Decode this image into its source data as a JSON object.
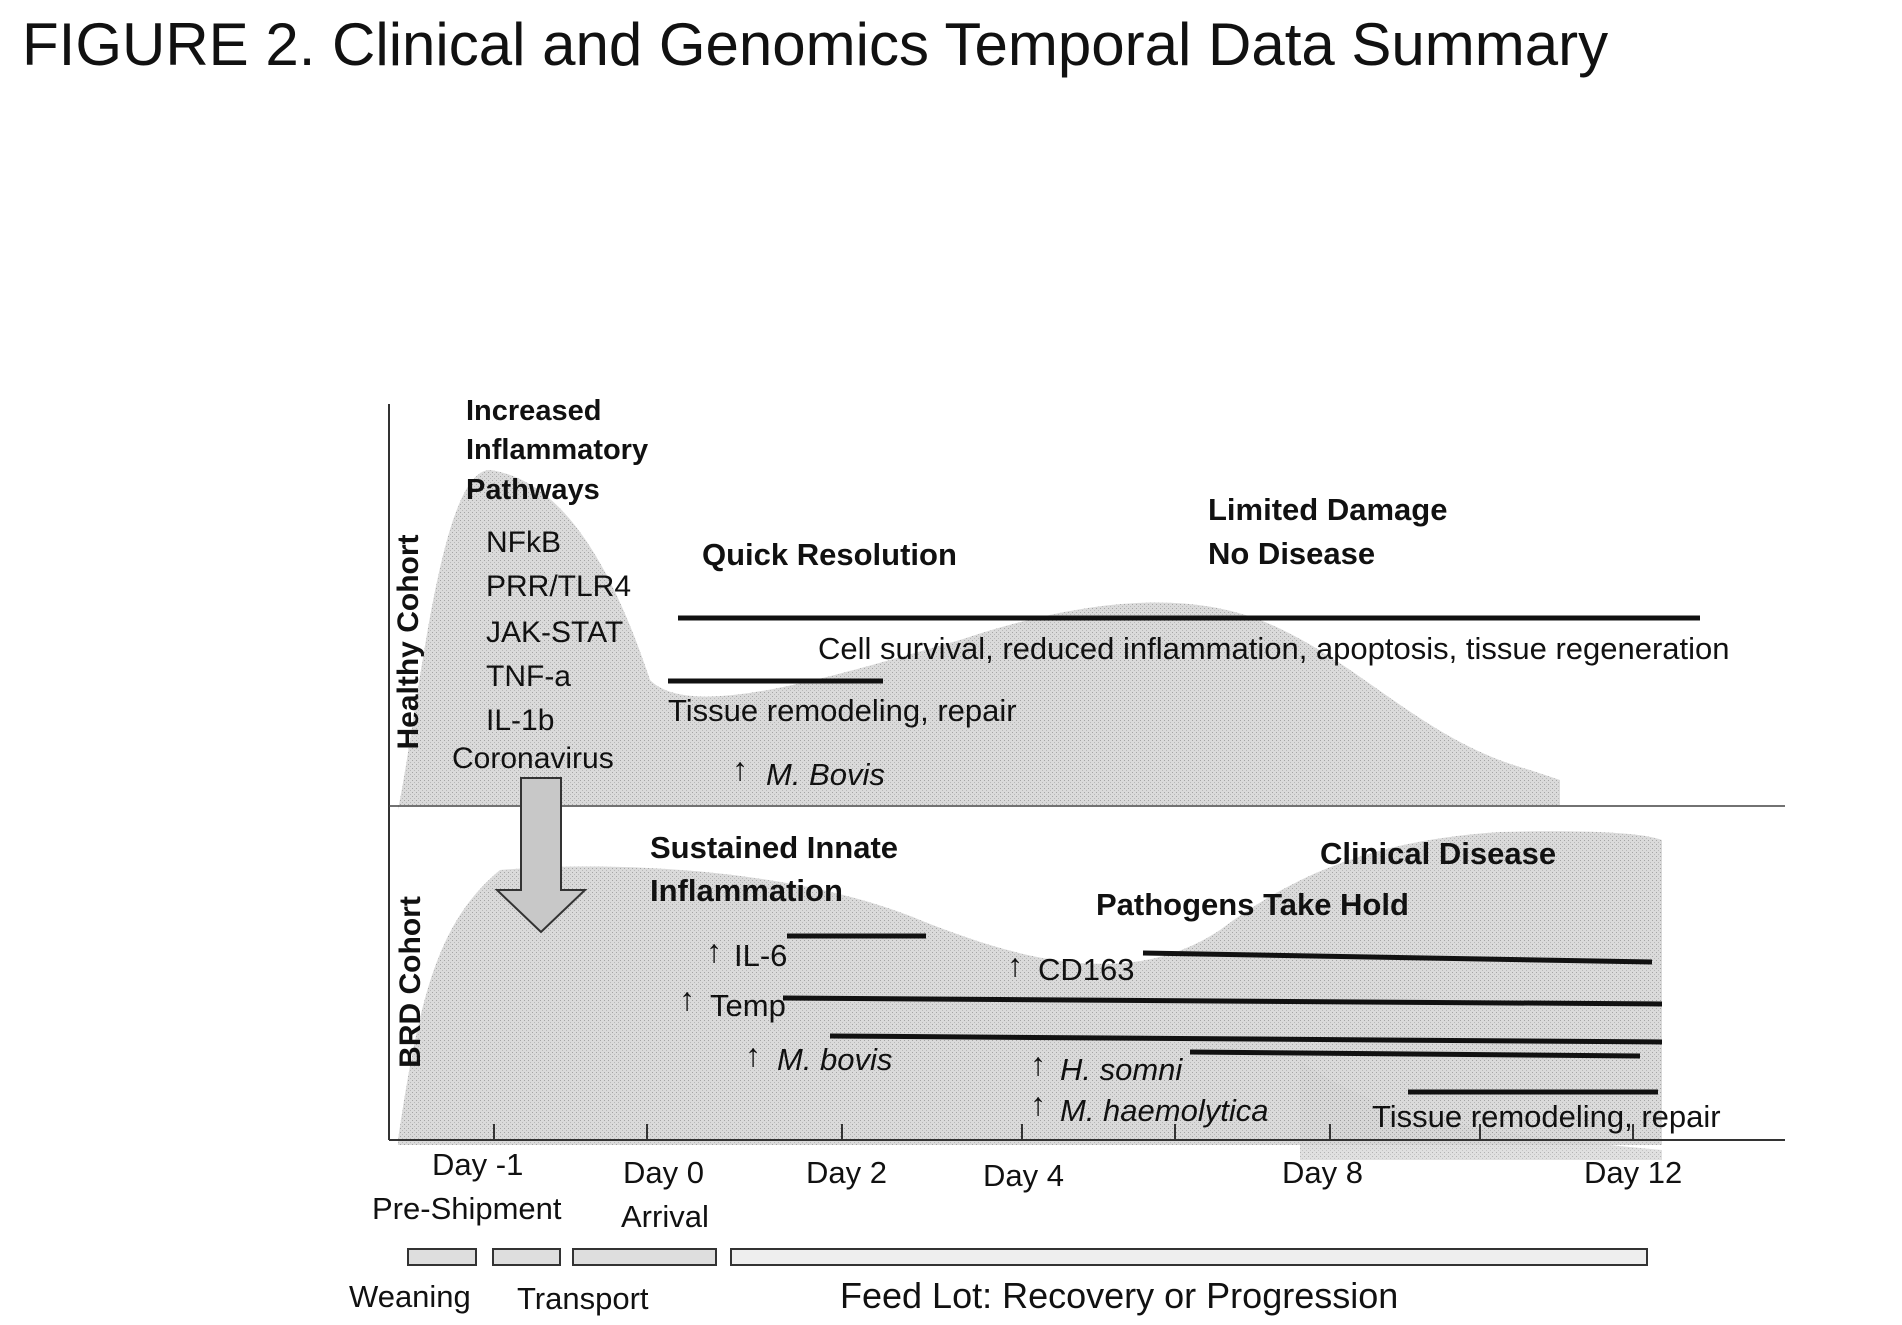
{
  "figure_title": "FIGURE 2. Clinical and Genomics Temporal Data Summary",
  "cohorts": {
    "healthy_label": "Healthy Cohort",
    "brd_label": "BRD Cohort"
  },
  "healthy": {
    "inflammatory_heading": [
      "Increased",
      "Inflammatory",
      "Pathways"
    ],
    "pathways": [
      "NFkB",
      "PRR/TLR4",
      "JAK-STAT",
      "TNF-a",
      "IL-1b",
      "Coronavirus"
    ],
    "quick_resolution": "Quick Resolution",
    "limited_damage": [
      "Limited Damage",
      "No Disease"
    ],
    "cell_survival": "Cell survival, reduced inflammation, apoptosis, tissue regeneration",
    "tissue_remodeling": "Tissue remodeling, repair",
    "m_bovis": "M. Bovis"
  },
  "brd": {
    "sustained": [
      "Sustained Innate",
      "Inflammation"
    ],
    "clinical_disease": "Clinical Disease",
    "pathogens": "Pathogens Take Hold",
    "il6": "IL-6",
    "temp": "Temp",
    "m_bovis": "M. bovis",
    "cd163": "CD163",
    "h_somni": "H. somni",
    "m_haemolytica": "M. haemolytica",
    "tissue_remodeling": "Tissue remodeling, repair"
  },
  "timeline": {
    "days": [
      "Day -1",
      "Day 0",
      "Day 2",
      "Day 4",
      "Day 8",
      "Day 12"
    ],
    "pre_shipment": "Pre-Shipment",
    "arrival": "Arrival"
  },
  "phases": [
    "Weaning",
    "Transport",
    "Feed Lot: Recovery or Progression"
  ],
  "up_arrow": "↑",
  "colors": {
    "shade": "#cfcfcf",
    "line": "#111111",
    "axis": "#333333",
    "phase_fill": "#dedede"
  }
}
